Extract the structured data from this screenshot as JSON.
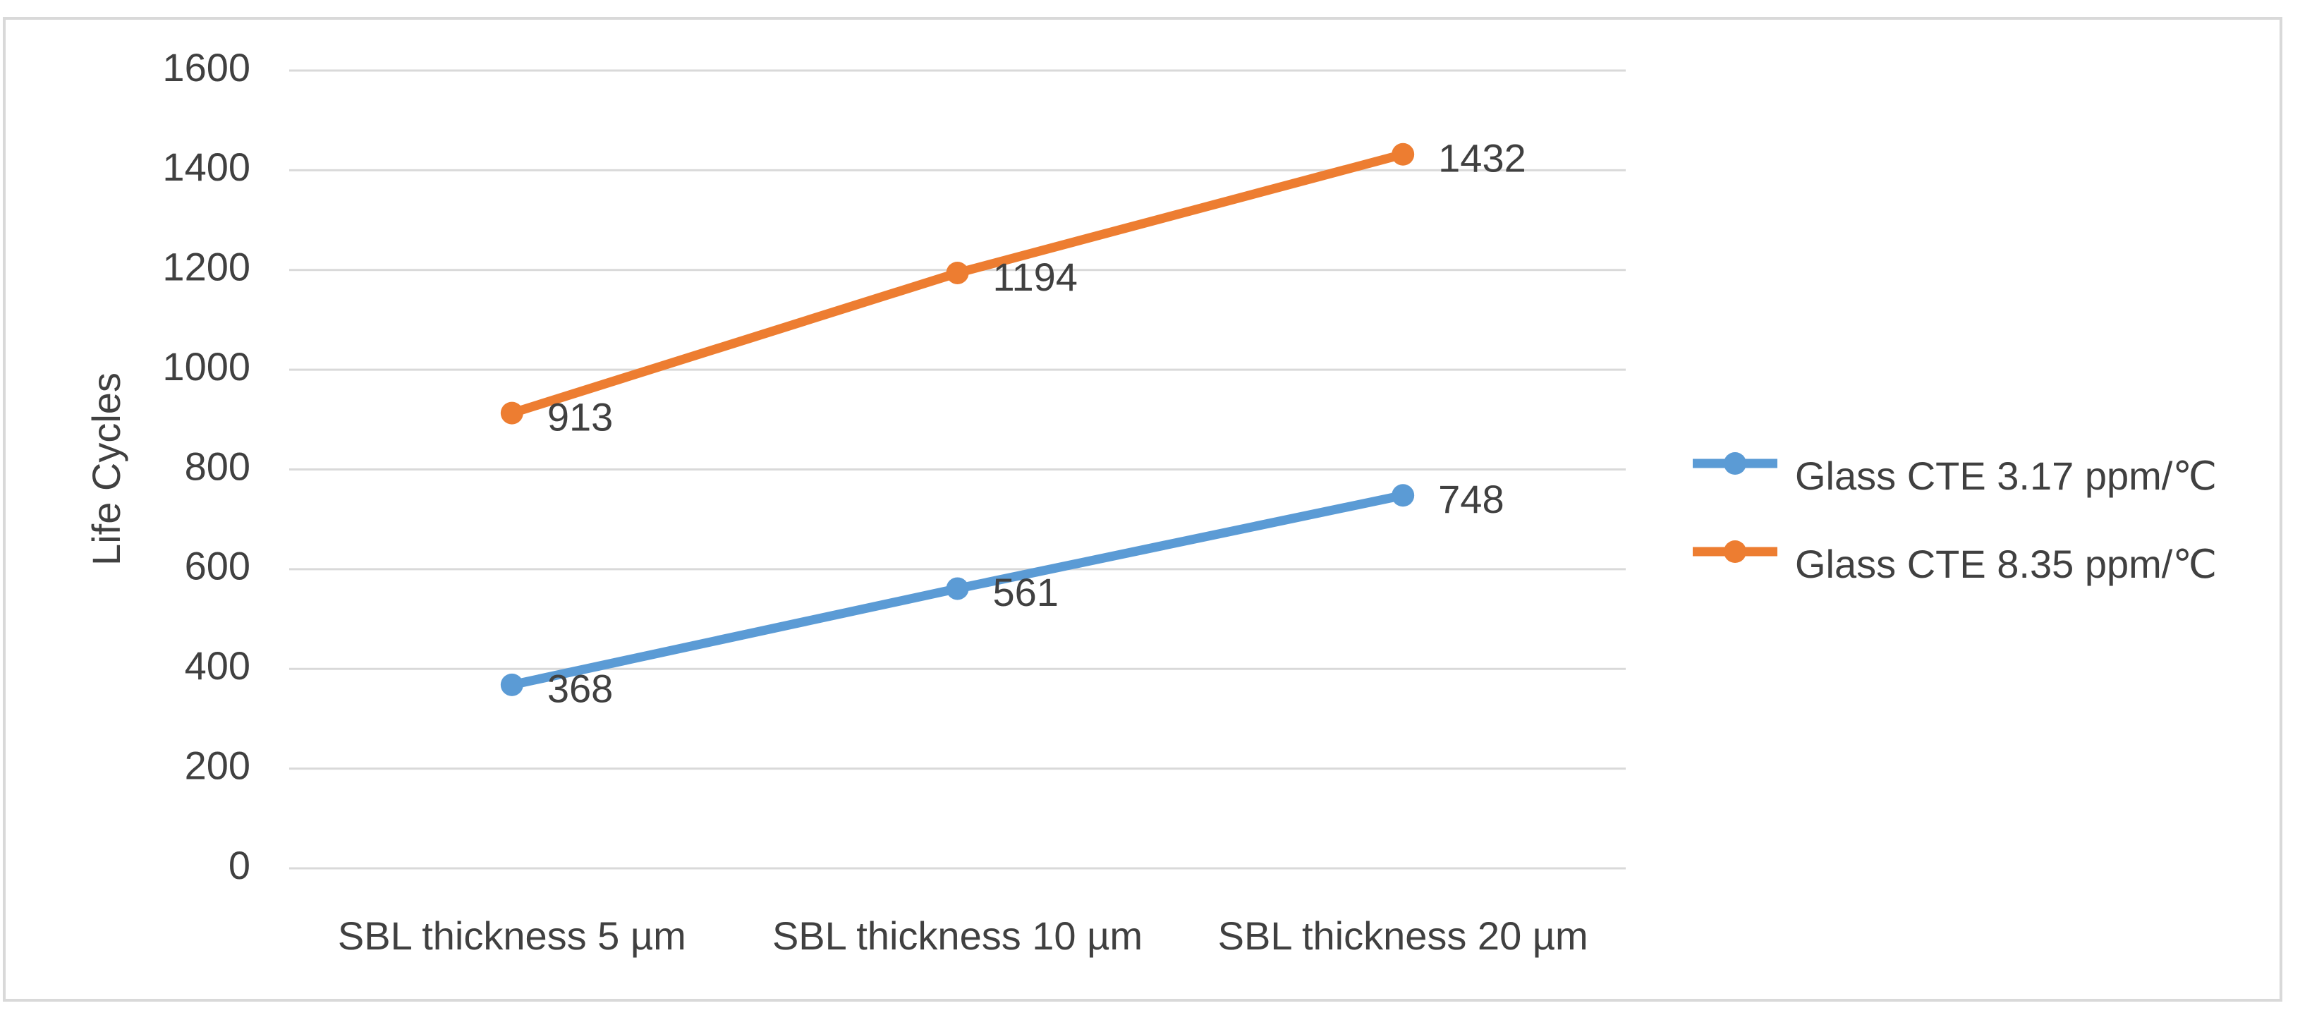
{
  "chart_data": {
    "type": "line",
    "y_label": "Life Cycles",
    "categories": [
      "SBL thickness 5 µm",
      "SBL thickness 10 µm",
      "SBL thickness 20 µm"
    ],
    "series": [
      {
        "name": "Glass CTE 3.17 ppm/℃",
        "color": "#5b9bd5",
        "values": [
          368,
          561,
          748
        ]
      },
      {
        "name": "Glass CTE 8.35 ppm/℃",
        "color": "#ed7d31",
        "values": [
          913,
          1194,
          1432
        ]
      }
    ],
    "ylim": [
      0,
      1600
    ],
    "yticks": [
      0,
      200,
      400,
      600,
      800,
      1000,
      1200,
      1400,
      1600
    ],
    "grid": true,
    "legend": "right"
  }
}
